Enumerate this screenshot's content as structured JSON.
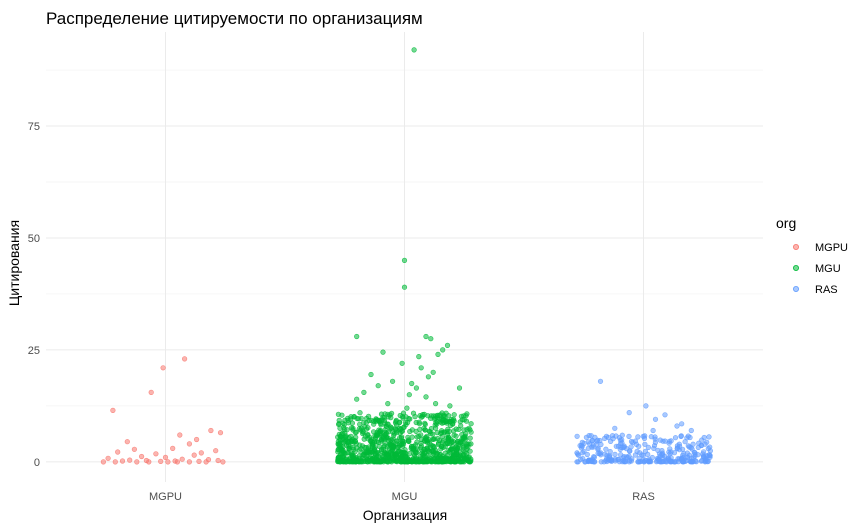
{
  "chart_data": {
    "type": "scatter",
    "title": "Распределение цитируемости по организациям",
    "xlabel": "Организация",
    "ylabel": "Цитирования",
    "categories": [
      "MGPU",
      "MGU",
      "RAS"
    ],
    "yticks": [
      0,
      25,
      50,
      75
    ],
    "ylim": [
      -4.5,
      96
    ],
    "grid": true,
    "legend": {
      "title": "org",
      "position": "right"
    },
    "series": [
      {
        "name": "MGPU",
        "color": "#F8766D",
        "points": [
          [
            0.08,
            23
          ],
          [
            -0.01,
            21
          ],
          [
            -0.06,
            15.5
          ],
          [
            -0.22,
            11.5
          ],
          [
            0.19,
            7
          ],
          [
            0.23,
            6.5
          ],
          [
            0.06,
            6
          ],
          [
            0.13,
            5
          ],
          [
            -0.16,
            4.5
          ],
          [
            0.1,
            4
          ],
          [
            0.03,
            3
          ],
          [
            -0.13,
            2.8
          ],
          [
            0.21,
            2.5
          ],
          [
            -0.2,
            2.2
          ],
          [
            0.15,
            2
          ],
          [
            -0.04,
            1.8
          ],
          [
            0.12,
            1.5
          ],
          [
            -0.1,
            1.2
          ],
          [
            0.0,
            1
          ],
          [
            -0.24,
            0.8
          ],
          [
            0.07,
            0.6
          ],
          [
            0.18,
            0.5
          ],
          [
            -0.15,
            0.4
          ],
          [
            0.22,
            0.3
          ],
          [
            -0.08,
            0.3
          ],
          [
            0.04,
            0.2
          ],
          [
            -0.18,
            0.2
          ],
          [
            0.14,
            0.1
          ],
          [
            -0.02,
            0.1
          ],
          [
            0.24,
            0
          ],
          [
            -0.26,
            0
          ],
          [
            -0.12,
            0
          ],
          [
            0.1,
            0
          ],
          [
            0.01,
            0
          ],
          [
            -0.07,
            0
          ],
          [
            0.17,
            0
          ],
          [
            -0.21,
            0
          ],
          [
            0.05,
            0
          ]
        ]
      },
      {
        "name": "MGU",
        "color": "#00BA38",
        "points": [
          [
            0.04,
            92
          ],
          [
            0.0,
            45
          ],
          [
            0.0,
            39
          ],
          [
            -0.2,
            28
          ],
          [
            0.09,
            28
          ],
          [
            0.11,
            27.5
          ],
          [
            0.18,
            26
          ],
          [
            0.16,
            25
          ],
          [
            0.14,
            24
          ],
          [
            -0.09,
            24.5
          ],
          [
            0.06,
            23.5
          ],
          [
            -0.01,
            22
          ],
          [
            0.07,
            21
          ],
          [
            0.12,
            20
          ],
          [
            -0.14,
            19.5
          ],
          [
            0.1,
            19
          ],
          [
            -0.05,
            18
          ],
          [
            0.03,
            17.5
          ],
          [
            -0.11,
            17
          ],
          [
            0.05,
            16.5
          ],
          [
            0.23,
            16.5
          ],
          [
            -0.17,
            15.5
          ],
          [
            0.02,
            15
          ],
          [
            0.09,
            14.5
          ],
          [
            -0.2,
            14
          ],
          [
            0.13,
            13
          ],
          [
            -0.07,
            13
          ],
          [
            0.19,
            12.5
          ],
          [
            0.01,
            12
          ]
        ],
        "noise_points": 950,
        "noise_range": [
          0,
          11
        ]
      },
      {
        "name": "RAS",
        "color": "#619CFF",
        "points": [
          [
            -0.18,
            18
          ],
          [
            0.01,
            12.5
          ],
          [
            -0.06,
            11
          ],
          [
            0.09,
            10.5
          ],
          [
            0.05,
            9.5
          ],
          [
            0.16,
            8.5
          ],
          [
            0.14,
            8
          ],
          [
            -0.12,
            7.5
          ],
          [
            0.2,
            7
          ],
          [
            0.04,
            7
          ]
        ],
        "noise_points": 300,
        "noise_range": [
          0,
          6
        ]
      }
    ]
  }
}
